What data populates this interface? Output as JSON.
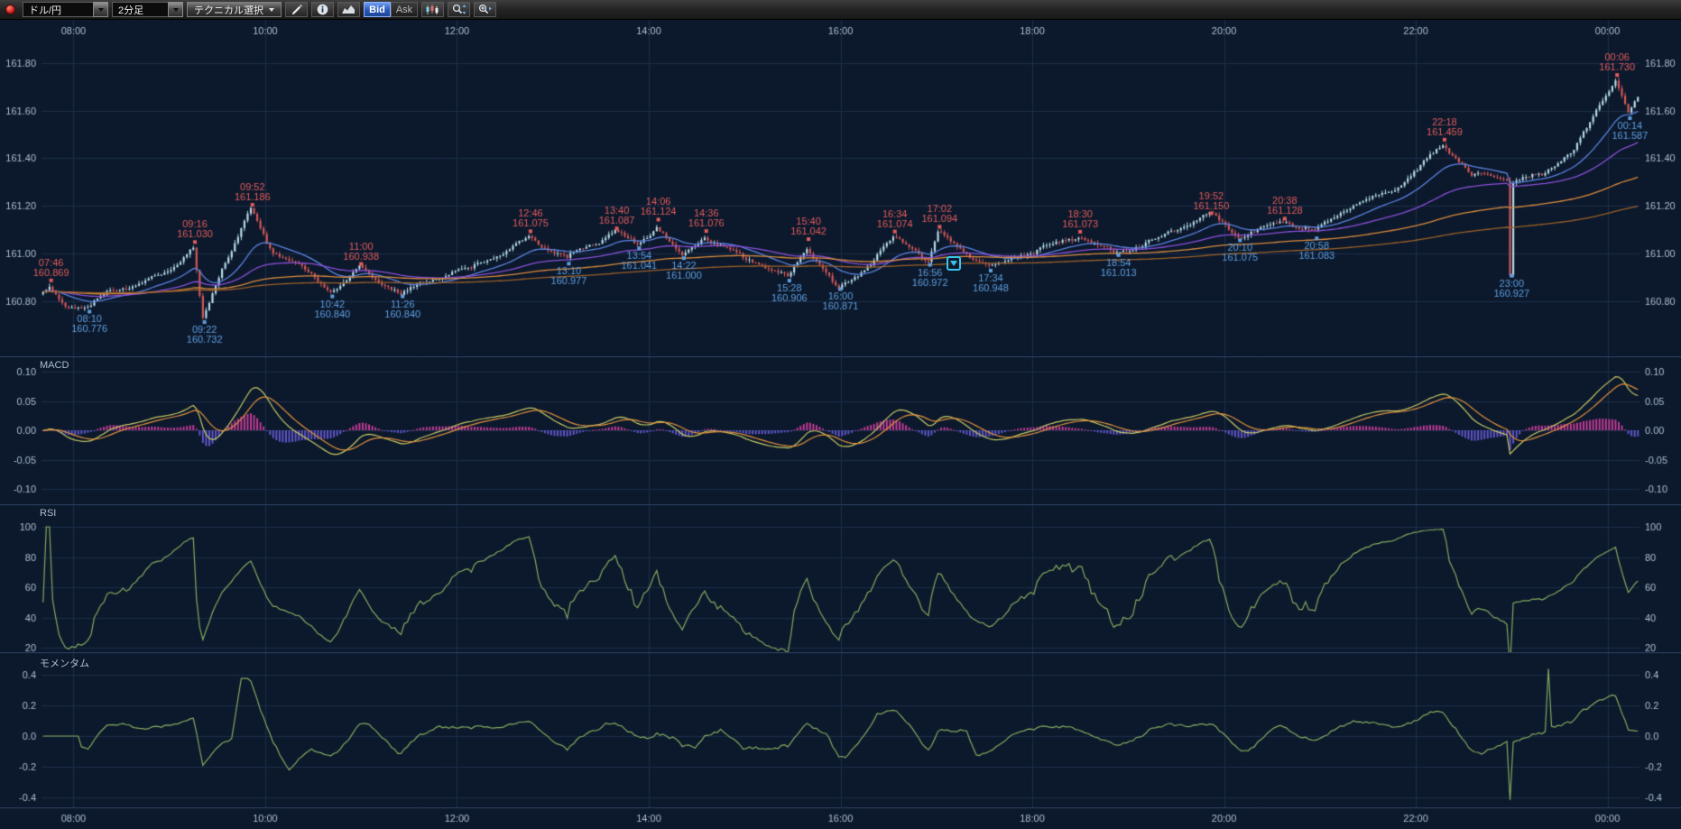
{
  "toolbar": {
    "pair": "ドル/円",
    "timeframe": "2分足",
    "technical_label": "テクニカル選択",
    "bid": "Bid",
    "ask": "Ask"
  },
  "colors": {
    "bg": "#0c192c",
    "grid": "#1c2e4a",
    "separator": "#2c4162",
    "axis_text": "#aebdd2",
    "candle_up": "#b4dae8",
    "candle_down": "#d25757",
    "annot_high": "#e25c5c",
    "annot_low": "#5f9fe0",
    "macd_line": "#c6c864",
    "macd_signal": "#e0913c",
    "hist_pos": "#c23a96",
    "hist_neg": "#6055c8",
    "osc_line": "#83a95f",
    "bid_active": "#2f6fd6"
  },
  "chart_data": {
    "type": "candlestick",
    "title": "ドル/円 2分足",
    "interval_minutes": 2,
    "start_time": "07:40",
    "end_time": "00:20",
    "candle_count": 500,
    "x_ticks": [
      "08:00",
      "10:00",
      "12:00",
      "14:00",
      "16:00",
      "18:00",
      "20:00",
      "22:00",
      "00:00"
    ],
    "price_ticks": [
      "161.80",
      "161.60",
      "161.40",
      "161.20",
      "161.00",
      "160.80"
    ],
    "price_tick_values": [
      161.8,
      161.6,
      161.4,
      161.2,
      161.0,
      160.8
    ],
    "price_range": [
      160.6,
      161.95
    ],
    "price_anchors": [
      [
        "07:40",
        160.83
      ],
      [
        "07:46",
        160.869
      ],
      [
        "07:56",
        160.8
      ],
      [
        "08:10",
        160.776
      ],
      [
        "08:24",
        160.85
      ],
      [
        "08:40",
        160.86
      ],
      [
        "09:00",
        160.92
      ],
      [
        "09:16",
        161.03
      ],
      [
        "09:22",
        160.732
      ],
      [
        "09:34",
        160.95
      ],
      [
        "09:52",
        161.186
      ],
      [
        "10:06",
        161.0
      ],
      [
        "10:20",
        160.95
      ],
      [
        "10:42",
        160.84
      ],
      [
        "11:00",
        160.938
      ],
      [
        "11:26",
        160.84
      ],
      [
        "11:50",
        160.89
      ],
      [
        "12:10",
        160.92
      ],
      [
        "12:30",
        161.0
      ],
      [
        "12:46",
        161.075
      ],
      [
        "13:10",
        160.977
      ],
      [
        "13:26",
        161.03
      ],
      [
        "13:40",
        161.087
      ],
      [
        "13:54",
        161.041
      ],
      [
        "14:06",
        161.124
      ],
      [
        "14:22",
        161.0
      ],
      [
        "14:36",
        161.076
      ],
      [
        "15:00",
        160.99
      ],
      [
        "15:28",
        160.906
      ],
      [
        "15:40",
        161.042
      ],
      [
        "16:00",
        160.871
      ],
      [
        "16:20",
        160.98
      ],
      [
        "16:34",
        161.074
      ],
      [
        "16:56",
        160.972
      ],
      [
        "17:02",
        161.094
      ],
      [
        "17:20",
        161.01
      ],
      [
        "17:34",
        160.948
      ],
      [
        "18:00",
        161.0
      ],
      [
        "18:30",
        161.073
      ],
      [
        "18:54",
        161.013
      ],
      [
        "19:20",
        161.05
      ],
      [
        "19:52",
        161.15
      ],
      [
        "20:10",
        161.075
      ],
      [
        "20:38",
        161.128
      ],
      [
        "20:58",
        161.083
      ],
      [
        "21:20",
        161.18
      ],
      [
        "21:50",
        161.28
      ],
      [
        "22:18",
        161.459
      ],
      [
        "22:36",
        161.33
      ],
      [
        "22:58",
        161.33
      ],
      [
        "23:00",
        160.927
      ],
      [
        "23:02",
        161.31
      ],
      [
        "23:20",
        161.35
      ],
      [
        "23:40",
        161.45
      ],
      [
        "00:06",
        161.73
      ],
      [
        "00:14",
        161.587
      ],
      [
        "00:20",
        161.64
      ]
    ],
    "annotations": {
      "highs": [
        [
          "07:46",
          "160.869"
        ],
        [
          "09:16",
          "161.030"
        ],
        [
          "09:52",
          "161.186"
        ],
        [
          "11:00",
          "160.938"
        ],
        [
          "12:46",
          "161.075"
        ],
        [
          "13:40",
          "161.087"
        ],
        [
          "14:06",
          "161.124"
        ],
        [
          "14:36",
          "161.076"
        ],
        [
          "15:40",
          "161.042"
        ],
        [
          "16:34",
          "161.074"
        ],
        [
          "17:02",
          "161.094"
        ],
        [
          "18:30",
          "161.073"
        ],
        [
          "19:52",
          "161.150"
        ],
        [
          "20:38",
          "161.128"
        ],
        [
          "22:18",
          "161.459"
        ],
        [
          "00:06",
          "161.730"
        ]
      ],
      "lows": [
        [
          "08:10",
          "160.776"
        ],
        [
          "09:22",
          "160.732"
        ],
        [
          "10:42",
          "160.840"
        ],
        [
          "11:26",
          "160.840"
        ],
        [
          "13:10",
          "160.977"
        ],
        [
          "13:54",
          "161.041"
        ],
        [
          "14:22",
          "161.000"
        ],
        [
          "15:28",
          "160.906"
        ],
        [
          "16:00",
          "160.871"
        ],
        [
          "16:56",
          "160.972"
        ],
        [
          "17:34",
          "160.948"
        ],
        [
          "18:54",
          "161.013"
        ],
        [
          "20:10",
          "161.075"
        ],
        [
          "20:58",
          "161.083"
        ],
        [
          "23:00",
          "160.927"
        ],
        [
          "00:14",
          "161.587"
        ]
      ]
    },
    "moving_averages": [
      {
        "period": 20,
        "color": "#5b82e0"
      },
      {
        "period": 60,
        "color": "#8a4fd8"
      },
      {
        "period": 150,
        "color": "#d98a3c"
      },
      {
        "period": 300,
        "color": "#9a5f28"
      }
    ],
    "panels": {
      "macd": {
        "label": "MACD",
        "ticks": [
          "0.10",
          "0.05",
          "0.00",
          "-0.05",
          "-0.10"
        ],
        "tick_values": [
          0.1,
          0.05,
          0,
          -0.05,
          -0.1
        ],
        "params": {
          "fast": 12,
          "slow": 26,
          "signal": 9
        }
      },
      "rsi": {
        "label": "RSI",
        "ticks": [
          "100",
          "80",
          "60",
          "40",
          "20"
        ],
        "tick_values": [
          100,
          80,
          60,
          40,
          20
        ],
        "period": 14
      },
      "momentum": {
        "label": "モメンタム",
        "ticks": [
          "0.4",
          "0.2",
          "0.0",
          "-0.2",
          "-0.4"
        ],
        "tick_values": [
          0.4,
          0.2,
          0,
          -0.2,
          -0.4
        ],
        "period": 12
      }
    }
  }
}
